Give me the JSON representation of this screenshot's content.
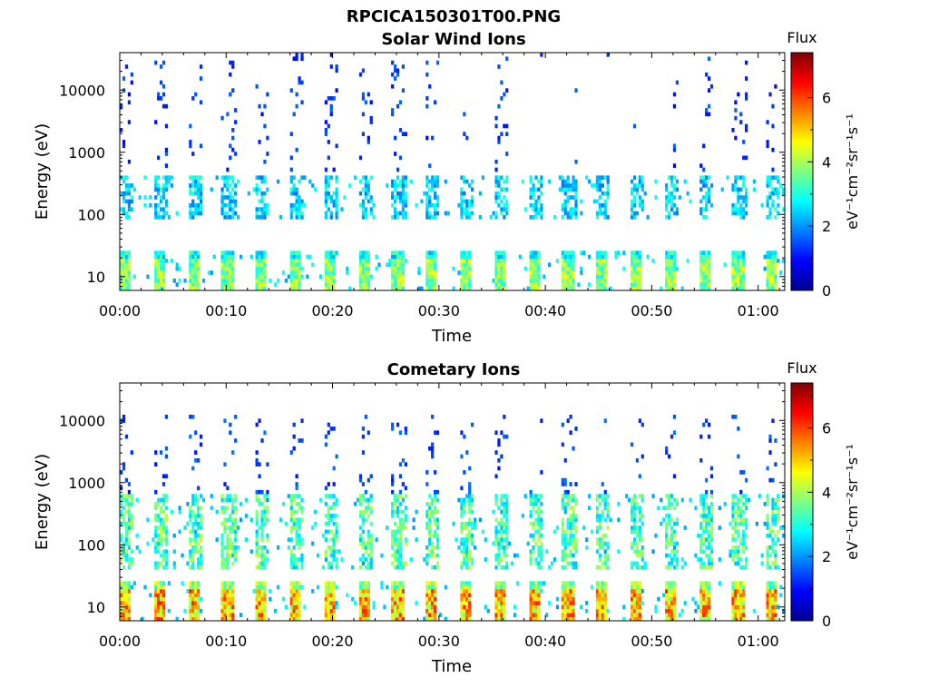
{
  "figure_title": "RPCICA150301T00.PNG",
  "chart_data": [
    {
      "type": "heatmap",
      "title": "Solar Wind Ions",
      "xlabel": "Time",
      "ylabel": "Energy (eV)",
      "x_ticks": [
        "00:00",
        "00:10",
        "00:20",
        "00:30",
        "00:40",
        "00:50",
        "01:00"
      ],
      "x_tick_minutes": [
        0,
        10,
        20,
        30,
        40,
        50,
        60
      ],
      "xlim_minutes": [
        0,
        62.5
      ],
      "y_scale": "log",
      "ylim": [
        6,
        40000
      ],
      "y_ticks": [
        10,
        100,
        1000,
        10000
      ],
      "y_tick_labels": [
        "10",
        "100",
        "1000",
        "10000"
      ],
      "colorbar": {
        "title": "Flux",
        "label": "eV⁻¹cm⁻²sr⁻¹s⁻¹",
        "range": [
          0,
          7.4
        ],
        "ticks": [
          0,
          2,
          4,
          6
        ],
        "tick_labels": [
          "0",
          "2",
          "4",
          "6"
        ],
        "colormap": "jet"
      },
      "pattern": {
        "sweep_period_minutes": 3.2,
        "low_band": {
          "energy_range": [
            6,
            28
          ],
          "peak_flux": 4.7
        },
        "mid_band": {
          "energy_range": [
            90,
            450
          ],
          "peak_flux": 3.2
        },
        "sparse_high": {
          "energy_range": [
            500,
            40000
          ],
          "flux": 1.2,
          "quiet_interval_minutes": [
            37,
            52
          ]
        }
      }
    },
    {
      "type": "heatmap",
      "title": "Cometary Ions",
      "xlabel": "Time",
      "ylabel": "Energy (eV)",
      "x_ticks": [
        "00:00",
        "00:10",
        "00:20",
        "00:30",
        "00:40",
        "00:50",
        "01:00"
      ],
      "x_tick_minutes": [
        0,
        10,
        20,
        30,
        40,
        50,
        60
      ],
      "xlim_minutes": [
        0,
        62.5
      ],
      "y_scale": "log",
      "ylim": [
        6,
        40000
      ],
      "y_ticks": [
        10,
        100,
        1000,
        10000
      ],
      "y_tick_labels": [
        "10",
        "100",
        "1000",
        "10000"
      ],
      "colorbar": {
        "title": "Flux",
        "label": "eV⁻¹cm⁻²sr⁻¹s⁻¹",
        "range": [
          0,
          7.4
        ],
        "ticks": [
          0,
          2,
          4,
          6
        ],
        "tick_labels": [
          "0",
          "2",
          "4",
          "6"
        ],
        "colormap": "jet"
      },
      "pattern": {
        "sweep_period_minutes": 3.2,
        "low_band": {
          "energy_range": [
            6,
            28
          ],
          "peak_flux": 6.3
        },
        "mid_band": {
          "energy_range": [
            40,
            700
          ],
          "peak_flux": 4.2
        },
        "sparse_high": {
          "energy_range": [
            700,
            12000
          ],
          "flux": 1.3
        }
      }
    }
  ]
}
